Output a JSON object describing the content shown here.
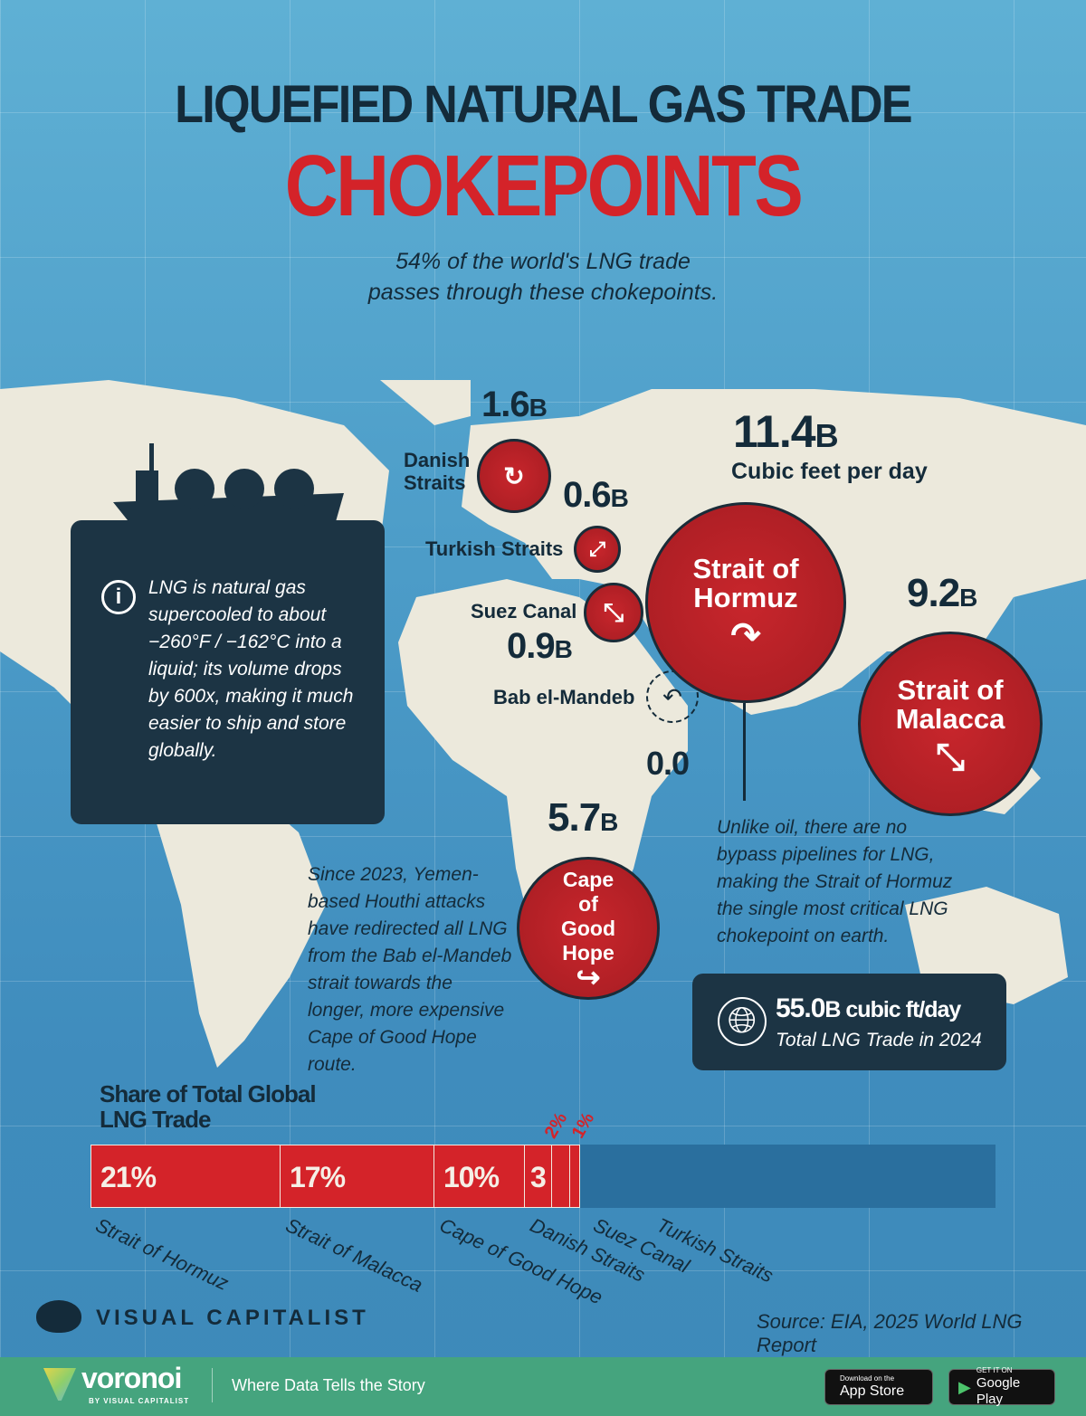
{
  "title_line1": "LIQUEFIED NATURAL GAS TRADE",
  "title_line2": "CHOKEPOINTS",
  "subtitle_line1": "54% of the world's LNG trade",
  "subtitle_line2": "passes through these chokepoints.",
  "colors": {
    "accent": "#d42329",
    "dark": "#1c3444",
    "ocean": "#4c9cc8",
    "land": "#ece9dc",
    "footer": "#45a47e",
    "bar_rest": "#2a6f9e"
  },
  "chokepoints": {
    "danish": {
      "label": "Danish Straits",
      "value": "1.6",
      "unit": "B"
    },
    "turkish": {
      "label": "Turkish Straits",
      "value": "0.6",
      "unit": "B"
    },
    "suez": {
      "label": "Suez Canal",
      "value": "0.9",
      "unit": "B"
    },
    "bab": {
      "label": "Bab el-Mandeb",
      "value": "0.0"
    },
    "hormuz": {
      "label": "Strait of Hormuz",
      "value": "11.4",
      "unit": "B",
      "unit_label": "Cubic feet per day"
    },
    "malacca": {
      "label": "Strait of Malacca",
      "value": "9.2",
      "unit": "B"
    },
    "cape": {
      "label": "Cape of Good Hope",
      "value": "5.7",
      "unit": "B"
    }
  },
  "info_text": "LNG is natural gas supercooled to about −260°F / −162°C into a liquid; its volume drops by 600x, making it much easier to ship and store globally.",
  "houthi_note": "Since 2023, Yemen-based Houthi attacks have redirected all LNG from the Bab el-Mandeb strait towards the longer, more expensive Cape of Good Hope route.",
  "hormuz_note": "Unlike oil, there are no bypass pipelines for LNG, making the Strait of Hormuz the single most critical LNG chokepoint on earth.",
  "total": {
    "value": "55.0",
    "unit": "B cubic ft/day",
    "label": "Total LNG Trade in 2024"
  },
  "chart_data": {
    "type": "bar",
    "title": "Share of Total Global LNG Trade",
    "stacked": true,
    "categories": [
      "Strait of Hormuz",
      "Strait of Malacca",
      "Cape of Good Hope",
      "Danish Straits",
      "Suez Canal",
      "Turkish Straits"
    ],
    "values": [
      21,
      17,
      10,
      3,
      2,
      1
    ],
    "labels": [
      "21%",
      "17%",
      "10%",
      "3",
      "2%",
      "1%"
    ],
    "xlim": [
      0,
      100
    ]
  },
  "source": "Source: EIA, 2025 World LNG Report",
  "brand": "VISUAL CAPITALIST",
  "footer": {
    "logo": "voronoi",
    "logo_sub": "BY VISUAL CAPITALIST",
    "tagline": "Where Data Tells the Story",
    "app_store_small": "Download on the",
    "app_store": "App Store",
    "google_small": "GET IT ON",
    "google": "Google Play"
  }
}
